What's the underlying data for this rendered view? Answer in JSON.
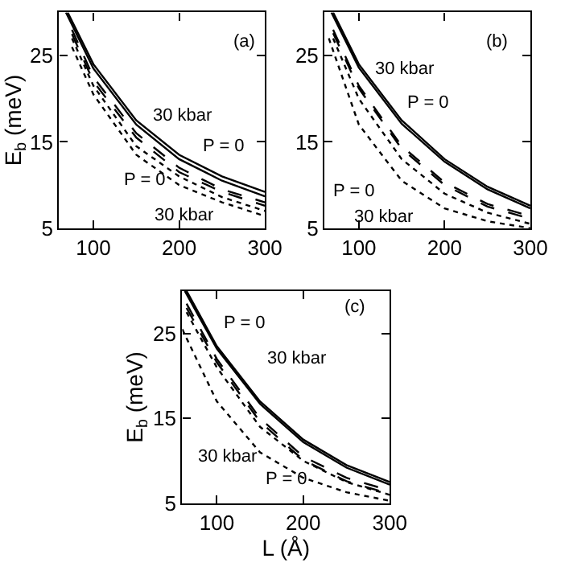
{
  "chart_data": [
    {
      "type": "line",
      "ylabel": "E$_{b}$ (meV)",
      "xlim": [
        60,
        300
      ],
      "ylim": [
        5,
        30
      ],
      "xticks": [
        100,
        200,
        300
      ],
      "yticks": [
        5,
        15,
        25
      ],
      "marker": "none",
      "annotations": [
        "(a)",
        "30 kbar",
        "P = 0",
        "P = 0",
        "30 kbar"
      ],
      "series": [
        {
          "color": "#000000",
          "line_style": "solid",
          "x": [
            70,
            100,
            150,
            200,
            250,
            300
          ],
          "values": [
            30,
            24,
            17.5,
            13.5,
            11,
            9.2
          ]
        },
        {
          "color": "#000000",
          "line_style": "solid",
          "x": [
            68,
            100,
            150,
            200,
            250,
            300
          ],
          "values": [
            30,
            23.5,
            17,
            13,
            10.5,
            8.7
          ]
        },
        {
          "color": "#000000",
          "line_style": "dashed",
          "x": [
            75,
            100,
            150,
            200,
            250,
            300
          ],
          "values": [
            28,
            22.5,
            16,
            12,
            9.5,
            8
          ]
        },
        {
          "color": "#000000",
          "line_style": "dashed",
          "x": [
            75,
            100,
            150,
            200,
            250,
            300
          ],
          "values": [
            27.5,
            22,
            15.5,
            11.5,
            9.2,
            7.6
          ]
        },
        {
          "color": "#000000",
          "line_style": "dotted",
          "x": [
            75,
            100,
            150,
            200,
            250,
            300
          ],
          "values": [
            27,
            21.5,
            14.5,
            11,
            8.6,
            7
          ]
        },
        {
          "color": "#000000",
          "line_style": "dotted",
          "x": [
            75,
            100,
            150,
            200,
            250,
            300
          ],
          "values": [
            26,
            20.5,
            13.5,
            10,
            8,
            6.4
          ]
        }
      ]
    },
    {
      "type": "line",
      "xlim": [
        60,
        300
      ],
      "ylim": [
        5,
        30
      ],
      "xticks": [
        100,
        200,
        300
      ],
      "yticks": [
        5,
        15,
        25
      ],
      "marker": "none",
      "annotations": [
        "(b)",
        "30 kbar",
        "P = 0",
        "P = 0",
        "30 kbar"
      ],
      "series": [
        {
          "color": "#000000",
          "line_style": "solid",
          "x": [
            70,
            100,
            150,
            200,
            250,
            300
          ],
          "values": [
            30,
            24,
            17.5,
            13,
            9.8,
            7.6
          ]
        },
        {
          "color": "#000000",
          "line_style": "solid",
          "x": [
            68,
            100,
            150,
            200,
            250,
            300
          ],
          "values": [
            30,
            23.6,
            17.1,
            12.7,
            9.5,
            7.3
          ]
        },
        {
          "color": "#000000",
          "line_style": "dashed",
          "x": [
            70,
            100,
            150,
            200,
            250,
            300
          ],
          "values": [
            28,
            21.5,
            14.5,
            10.3,
            7.8,
            6.4
          ]
        },
        {
          "color": "#000000",
          "line_style": "dashed",
          "x": [
            70,
            100,
            150,
            200,
            250,
            300
          ],
          "values": [
            27.6,
            21.2,
            14.2,
            10,
            7.5,
            6.1
          ]
        },
        {
          "color": "#000000",
          "line_style": "dotted",
          "x": [
            70,
            100,
            150,
            200,
            250,
            300
          ],
          "values": [
            27,
            20,
            13,
            9,
            6.8,
            5.5
          ]
        },
        {
          "color": "#000000",
          "line_style": "dotted",
          "x": [
            65,
            100,
            150,
            200,
            250,
            300
          ],
          "values": [
            27,
            17,
            10.5,
            7.3,
            5.8,
            5
          ]
        }
      ]
    },
    {
      "type": "line",
      "xlabel": "L (Å)",
      "ylabel": "E$_{b}$ (meV)",
      "xlim": [
        60,
        300
      ],
      "ylim": [
        5,
        30
      ],
      "xticks": [
        100,
        200,
        300
      ],
      "yticks": [
        5,
        15,
        25
      ],
      "marker": "none",
      "annotations": [
        "(c)",
        "P = 0",
        "30 kbar",
        "30 kbar",
        "P = 0"
      ],
      "series": [
        {
          "color": "#000000",
          "line_style": "solid",
          "x": [
            65,
            100,
            150,
            200,
            250,
            300
          ],
          "values": [
            30,
            23.5,
            17,
            12.5,
            9.5,
            7.5
          ]
        },
        {
          "color": "#000000",
          "line_style": "solid",
          "x": [
            63,
            100,
            150,
            200,
            250,
            300
          ],
          "values": [
            30,
            23.2,
            16.7,
            12.2,
            9.2,
            7.2
          ]
        },
        {
          "color": "#000000",
          "line_style": "dashed",
          "x": [
            65,
            100,
            150,
            200,
            250,
            300
          ],
          "values": [
            28.5,
            22,
            15,
            10.5,
            8,
            6.5
          ]
        },
        {
          "color": "#000000",
          "line_style": "dashed",
          "x": [
            65,
            100,
            150,
            200,
            250,
            300
          ],
          "values": [
            28,
            21.6,
            14.6,
            10.1,
            7.6,
            6.1
          ]
        },
        {
          "color": "#000000",
          "line_style": "dotted",
          "x": [
            65,
            100,
            150,
            200,
            250,
            300
          ],
          "values": [
            27.5,
            21,
            14,
            10,
            7.5,
            6
          ]
        },
        {
          "color": "#000000",
          "line_style": "dotted",
          "x": [
            60,
            100,
            150,
            200,
            250,
            300
          ],
          "values": [
            25.5,
            17,
            11,
            8,
            6.3,
            5.3
          ]
        }
      ]
    }
  ]
}
